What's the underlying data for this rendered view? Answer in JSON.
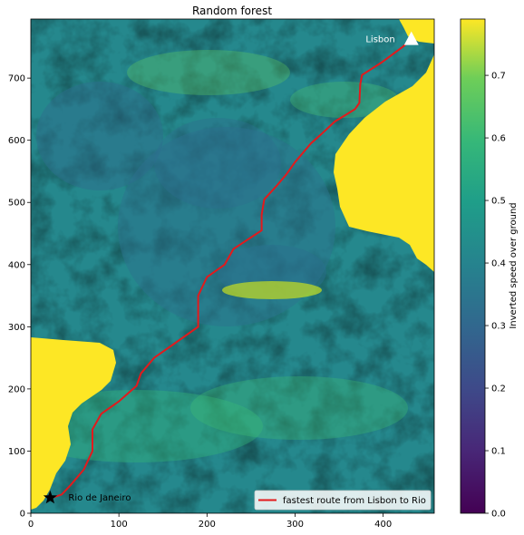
{
  "chart_data": {
    "type": "heatmap",
    "title": "Random forest",
    "xlabel": "",
    "ylabel": "",
    "xlim": [
      0,
      458
    ],
    "ylim": [
      0,
      795
    ],
    "x_ticks": [
      0,
      100,
      200,
      300,
      400
    ],
    "y_ticks": [
      0,
      100,
      200,
      300,
      400,
      500,
      600,
      700
    ],
    "colorbar": {
      "label": "Inverted speed over ground",
      "colormap": "viridis",
      "range": [
        0.0,
        0.79
      ],
      "ticks": [
        0.0,
        0.1,
        0.2,
        0.3,
        0.4,
        0.5,
        0.6,
        0.7
      ]
    },
    "land_color": "#fde725",
    "route": {
      "name": "fastest route from Lisbon to Rio",
      "color": "#e31a1c",
      "points": [
        [
          432,
          762
        ],
        [
          422,
          750
        ],
        [
          398,
          725
        ],
        [
          376,
          705
        ],
        [
          374,
          690
        ],
        [
          373,
          660
        ],
        [
          368,
          650
        ],
        [
          345,
          630
        ],
        [
          330,
          610
        ],
        [
          318,
          595
        ],
        [
          300,
          565
        ],
        [
          290,
          545
        ],
        [
          278,
          525
        ],
        [
          265,
          505
        ],
        [
          262,
          480
        ],
        [
          262,
          455
        ],
        [
          230,
          425
        ],
        [
          220,
          400
        ],
        [
          200,
          380
        ],
        [
          190,
          350
        ],
        [
          190,
          300
        ],
        [
          160,
          270
        ],
        [
          140,
          250
        ],
        [
          125,
          225
        ],
        [
          120,
          205
        ],
        [
          100,
          180
        ],
        [
          80,
          160
        ],
        [
          70,
          135
        ],
        [
          70,
          100
        ],
        [
          60,
          70
        ],
        [
          45,
          45
        ],
        [
          35,
          30
        ],
        [
          24,
          25
        ]
      ]
    },
    "markers": [
      {
        "name": "Lisbon",
        "x": 432,
        "y": 762,
        "symbol": "triangle",
        "color": "#ffffff"
      },
      {
        "name": "Rio de Janeiro",
        "x": 22,
        "y": 25,
        "symbol": "star",
        "color": "#000000"
      }
    ],
    "legend": {
      "placement": "lower-right",
      "entries": [
        "fastest route from Lisbon to Rio"
      ]
    }
  }
}
